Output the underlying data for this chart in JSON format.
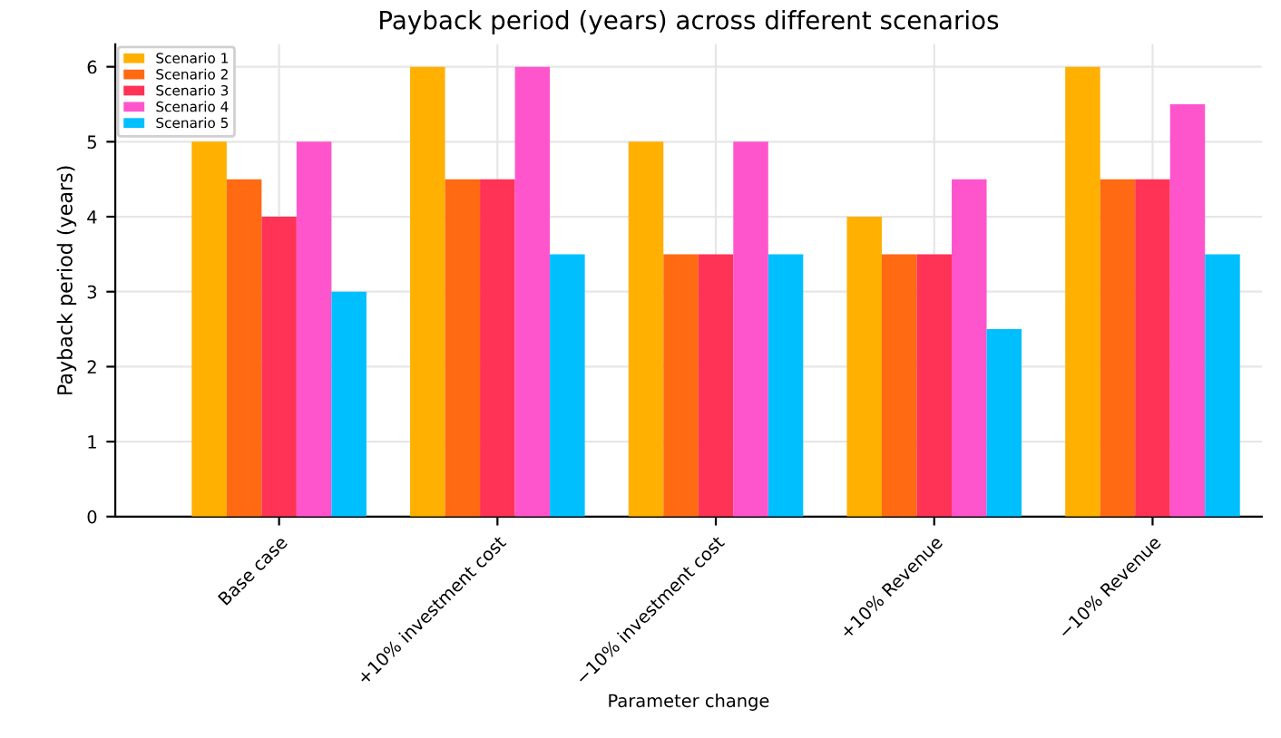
{
  "chart_data": {
    "type": "bar",
    "title": "Payback period (years) across different scenarios",
    "xlabel": "Parameter change",
    "ylabel": "Payback period (years)",
    "categories": [
      "Base case",
      "+10% investment cost",
      "−10% investment cost",
      "+10% Revenue",
      "−10% Revenue"
    ],
    "series": [
      {
        "name": "Scenario 1",
        "color": "#ffb000",
        "values": [
          5,
          6,
          5,
          4,
          6
        ]
      },
      {
        "name": "Scenario 2",
        "color": "#ff6a13",
        "values": [
          4.5,
          4.5,
          3.5,
          3.5,
          4.5
        ]
      },
      {
        "name": "Scenario 3",
        "color": "#ff3355",
        "values": [
          4,
          4.5,
          3.5,
          3.5,
          4.5
        ]
      },
      {
        "name": "Scenario 4",
        "color": "#ff55cc",
        "values": [
          5,
          6,
          5,
          4.5,
          5.5
        ]
      },
      {
        "name": "Scenario 5",
        "color": "#00bfff",
        "values": [
          3,
          3.5,
          3.5,
          2.5,
          3.5
        ]
      }
    ],
    "ylim": [
      0,
      6.3
    ],
    "yticks": [
      0,
      1,
      2,
      3,
      4,
      5,
      6
    ],
    "grid": true,
    "legend": "top left"
  }
}
